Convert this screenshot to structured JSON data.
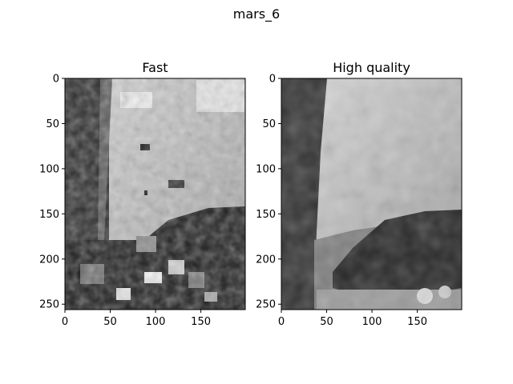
{
  "figure": {
    "suptitle": "mars_6"
  },
  "chart_data": [
    {
      "type": "heatmap",
      "title": "Fast",
      "colormap": "gray",
      "xlim": [
        0,
        199
      ],
      "ylim": [
        256,
        0
      ],
      "xticks": [
        "0",
        "50",
        "100",
        "150"
      ],
      "yticks": [
        "0",
        "50",
        "100",
        "150",
        "200",
        "250"
      ],
      "grid": false,
      "description": "grayscale disparity map, fast method"
    },
    {
      "type": "heatmap",
      "title": "High quality",
      "colormap": "gray",
      "xlim": [
        0,
        199
      ],
      "ylim": [
        256,
        0
      ],
      "xticks": [
        "0",
        "50",
        "100",
        "150"
      ],
      "yticks": [
        "0",
        "50",
        "100",
        "150",
        "200",
        "250"
      ],
      "grid": false,
      "description": "grayscale disparity map, high quality method"
    }
  ]
}
